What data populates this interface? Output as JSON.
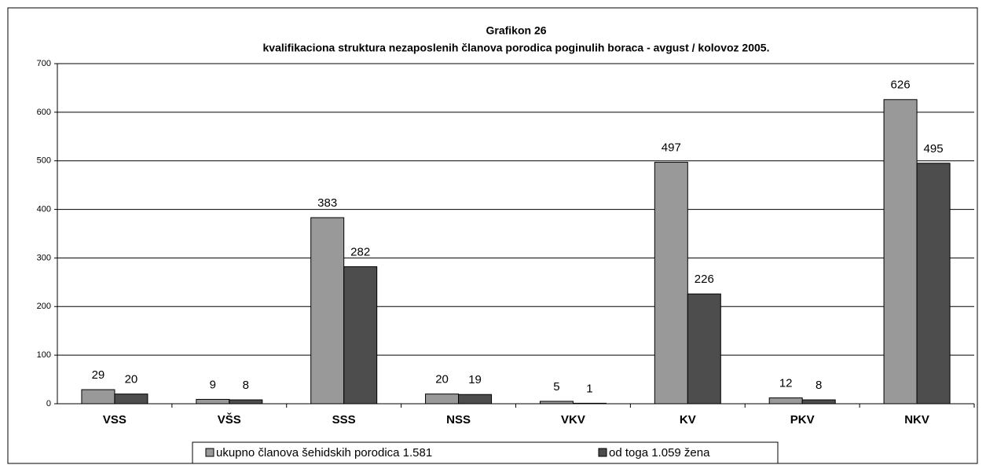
{
  "chart_data": {
    "type": "bar",
    "title": "Grafikon 26",
    "subtitle": "kvalifikaciona struktura nezaposlenih članova porodica poginulih boraca - avgust / kolovoz 2005.",
    "categories": [
      "VSS",
      "VŠS",
      "SSS",
      "NSS",
      "VKV",
      "KV",
      "PKV",
      "NKV"
    ],
    "series": [
      {
        "name": "ukupno članova šehidskih porodica 1.581",
        "color": "#999999",
        "values": [
          29,
          9,
          383,
          20,
          5,
          497,
          12,
          626
        ]
      },
      {
        "name": "od toga 1.059 žena",
        "color": "#4d4d4d",
        "values": [
          20,
          8,
          282,
          19,
          1,
          226,
          8,
          495
        ]
      }
    ],
    "ylim": [
      0,
      700
    ],
    "yticks": [
      0,
      100,
      200,
      300,
      400,
      500,
      600,
      700
    ],
    "grid": true,
    "legend": "bottom"
  }
}
